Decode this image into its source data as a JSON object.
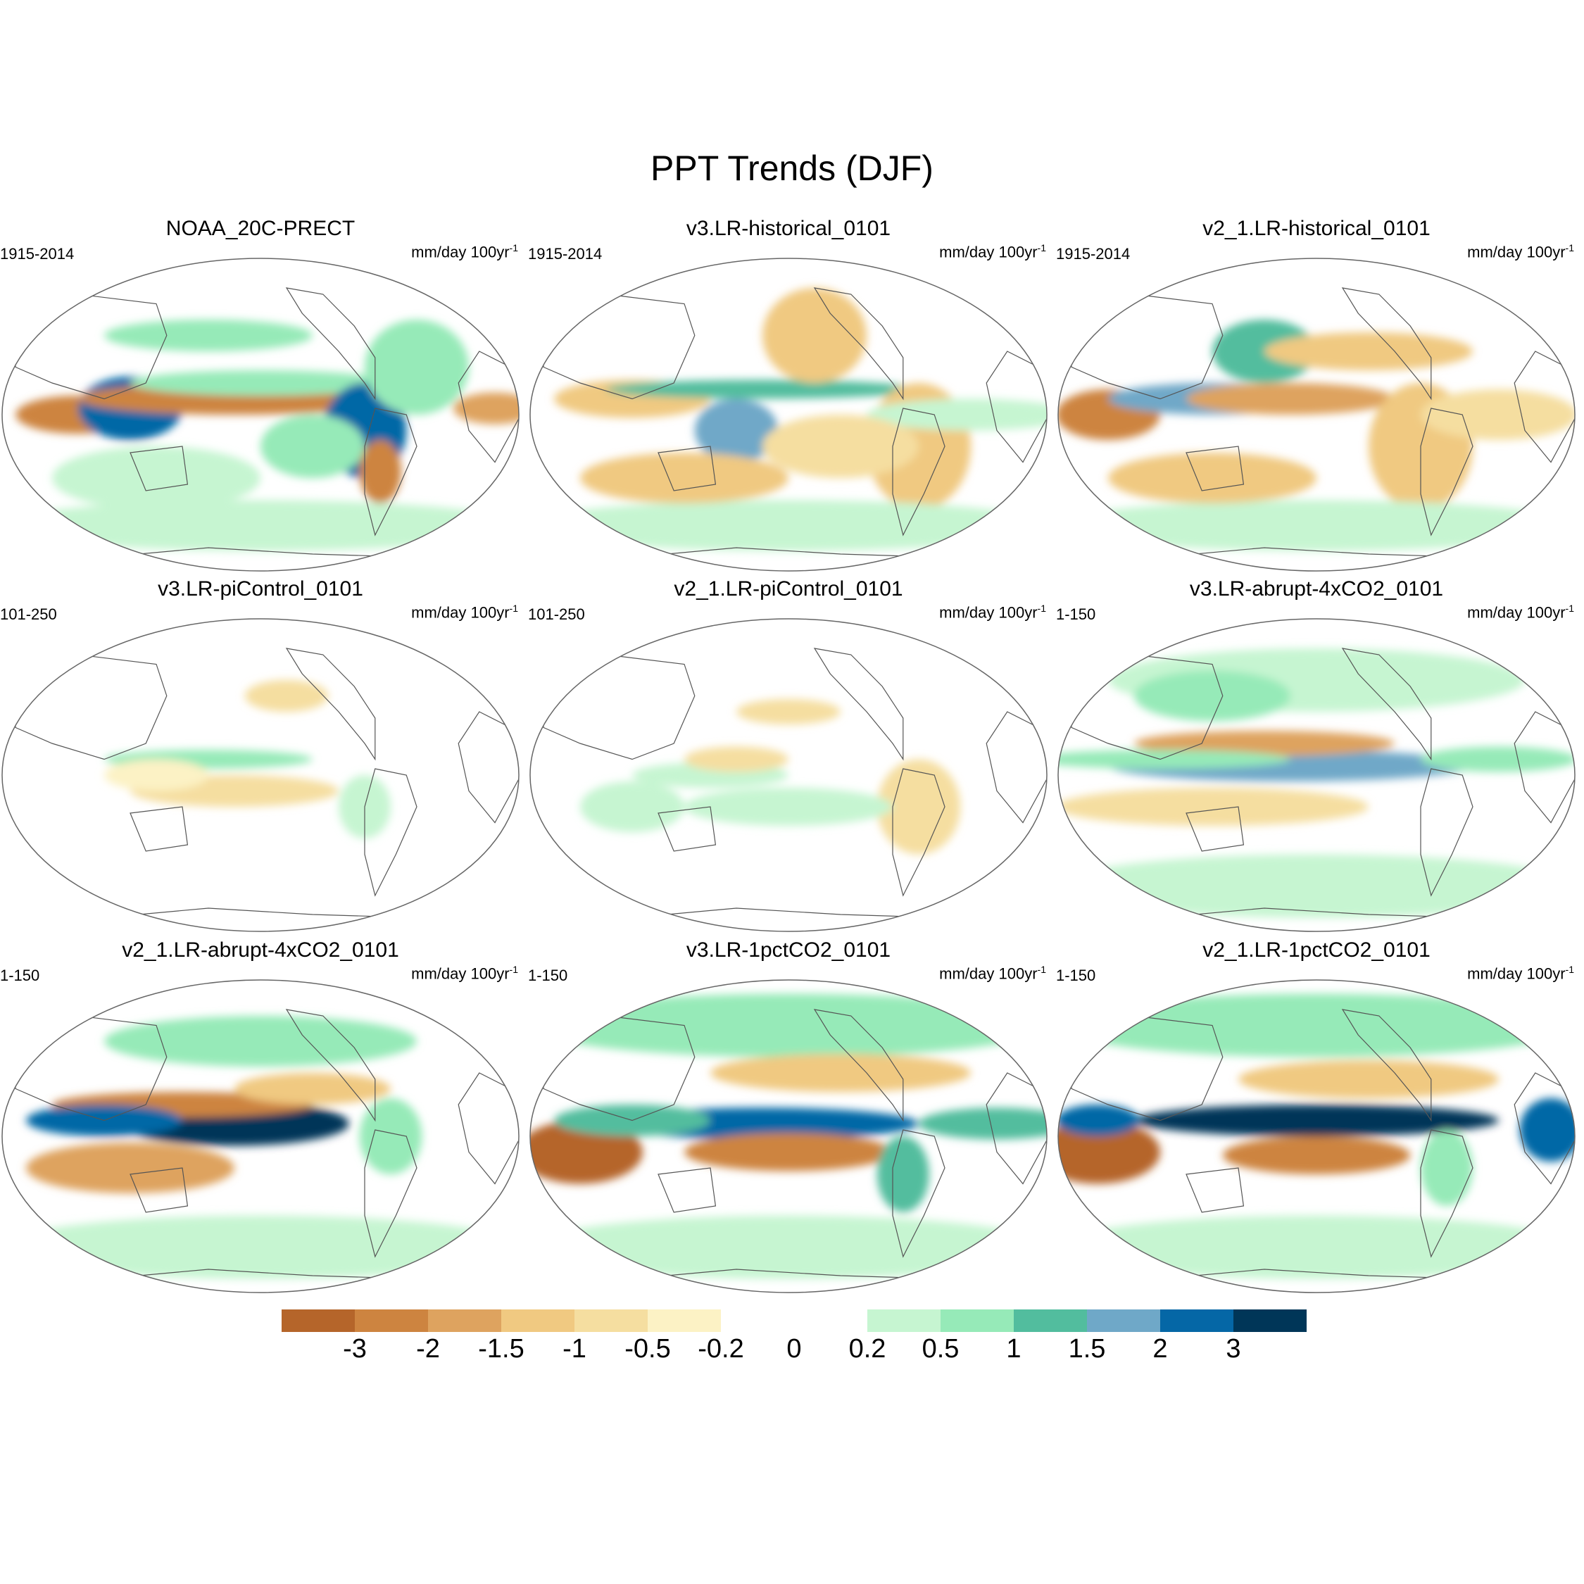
{
  "title": "PPT Trends (DJF)",
  "panels": [
    {
      "title": "NOAA_20C-PRECT",
      "period": "1915-2014",
      "units": "mm/day 100yr",
      "units_sup": "-1"
    },
    {
      "title": "v3.LR-historical_0101",
      "period": "1915-2014",
      "units": "mm/day 100yr",
      "units_sup": "-1"
    },
    {
      "title": "v2_1.LR-historical_0101",
      "period": "1915-2014",
      "units": "mm/day 100yr",
      "units_sup": "-1"
    },
    {
      "title": "v3.LR-piControl_0101",
      "period": "101-250",
      "units": "mm/day 100yr",
      "units_sup": "-1"
    },
    {
      "title": "v2_1.LR-piControl_0101",
      "period": "101-250",
      "units": "mm/day 100yr",
      "units_sup": "-1"
    },
    {
      "title": "v3.LR-abrupt-4xCO2_0101",
      "period": "1-150",
      "units": "mm/day 100yr",
      "units_sup": "-1"
    },
    {
      "title": "v2_1.LR-abrupt-4xCO2_0101",
      "period": "1-150",
      "units": "mm/day 100yr",
      "units_sup": "-1"
    },
    {
      "title": "v3.LR-1pctCO2_0101",
      "period": "1-150",
      "units": "mm/day 100yr",
      "units_sup": "-1"
    },
    {
      "title": "v2_1.LR-1pctCO2_0101",
      "period": "1-150",
      "units": "mm/day 100yr",
      "units_sup": "-1"
    }
  ],
  "colorbar": {
    "colors": [
      "#b5652a",
      "#cd8440",
      "#dea35f",
      "#f0c981",
      "#f5dea0",
      "#fcf2c5",
      "#ffffff",
      "#ffffff",
      "#c6f5d1",
      "#96eab8",
      "#52bd9e",
      "#6fa8c8",
      "#0567a6",
      "#003658"
    ],
    "labels": [
      "-3",
      "-2",
      "-1.5",
      "-1",
      "-0.5",
      "-0.2",
      "0",
      "0.2",
      "0.5",
      "1",
      "1.5",
      "2",
      "3"
    ]
  }
}
